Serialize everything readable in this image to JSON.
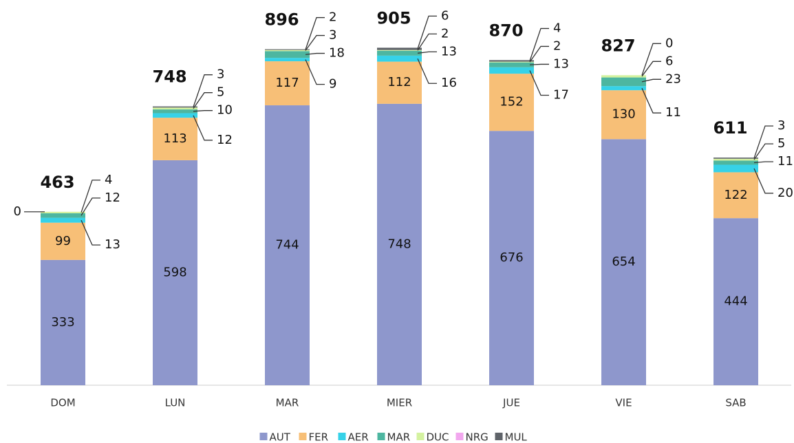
{
  "chart_data": {
    "type": "stacked_bar",
    "categories": [
      "DOM",
      "LUN",
      "MAR",
      "MIER",
      "JUE",
      "VIE",
      "SAB"
    ],
    "totals": [
      463,
      748,
      896,
      905,
      870,
      827,
      611
    ],
    "series": [
      {
        "name": "AUT",
        "color": "#8e97cc",
        "values": [
          333,
          598,
          744,
          748,
          676,
          654,
          444
        ]
      },
      {
        "name": "FER",
        "color": "#f7bf77",
        "values": [
          99,
          113,
          117,
          112,
          152,
          130,
          122
        ]
      },
      {
        "name": "AER",
        "color": "#36d2e8",
        "values": [
          13,
          12,
          9,
          16,
          17,
          11,
          20
        ]
      },
      {
        "name": "MAR",
        "color": "#4db6a0",
        "values": [
          12,
          10,
          18,
          13,
          13,
          23,
          11
        ]
      },
      {
        "name": "DUC",
        "color": "#d4f2a0",
        "values": [
          4,
          5,
          3,
          2,
          2,
          6,
          5
        ]
      },
      {
        "name": "NRG",
        "color": "#f2a7ee",
        "values": [
          0,
          null,
          null,
          null,
          null,
          null,
          null
        ]
      },
      {
        "name": "MUL",
        "color": "#5f6369",
        "values": [
          null,
          3,
          2,
          6,
          4,
          0,
          3
        ]
      }
    ],
    "legend": "bottom"
  }
}
